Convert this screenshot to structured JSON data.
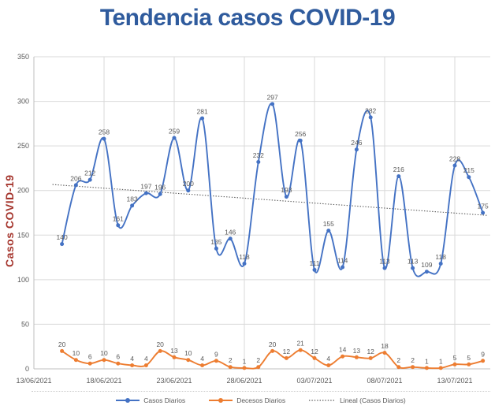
{
  "title": "Tendencia casos COVID-19",
  "y_axis_title": "Casos COVID-19",
  "colors": {
    "title": "#2F5B9D",
    "y_axis_title": "#A5352D",
    "casos_diarios": "#4472C4",
    "decesos_diarios": "#ED7D31",
    "trend_line": "#595959",
    "axis_text": "#595959",
    "gridlines": "#D9D9D9",
    "axis_lines": "#BFBFBF"
  },
  "legend": {
    "items": [
      "Casos Diarios",
      "Decesos Diarios",
      "Lineal (Casos Diarios)"
    ]
  },
  "chart_data": {
    "type": "line",
    "title": "Tendencia casos COVID-19",
    "xlabel": "",
    "ylabel": "Casos COVID-19",
    "ylim": [
      0,
      350
    ],
    "yticks": [
      0,
      50,
      100,
      150,
      200,
      250,
      300,
      350
    ],
    "x_tick_labels": [
      "13/06/2021",
      "18/06/2021",
      "23/06/2021",
      "28/06/2021",
      "03/07/2021",
      "08/07/2021",
      "13/07/2021"
    ],
    "x_frequency": "daily",
    "grid": true,
    "legend_position": "bottom",
    "smoothed_lines": true,
    "data_labels": true,
    "series": [
      {
        "name": "Casos Diarios",
        "color": "#4472C4",
        "values": [
          140,
          206,
          212,
          258,
          161,
          183,
          197,
          196,
          259,
          200,
          281,
          135,
          146,
          118,
          232,
          297,
          193,
          256,
          111,
          155,
          114,
          246,
          282,
          113,
          216,
          113,
          109,
          118,
          228,
          215,
          175
        ]
      },
      {
        "name": "Decesos Diarios",
        "color": "#ED7D31",
        "values": [
          20,
          10,
          6,
          10,
          6,
          4,
          4,
          20,
          13,
          10,
          4,
          9,
          2,
          1,
          2,
          20,
          12,
          21,
          12,
          4,
          14,
          13,
          12,
          18,
          2,
          2,
          1,
          1,
          5,
          5,
          9
        ]
      }
    ],
    "trendline": {
      "name": "Lineal (Casos Diarios)",
      "based_on": "Casos Diarios",
      "style": "dotted",
      "color": "#595959"
    }
  }
}
